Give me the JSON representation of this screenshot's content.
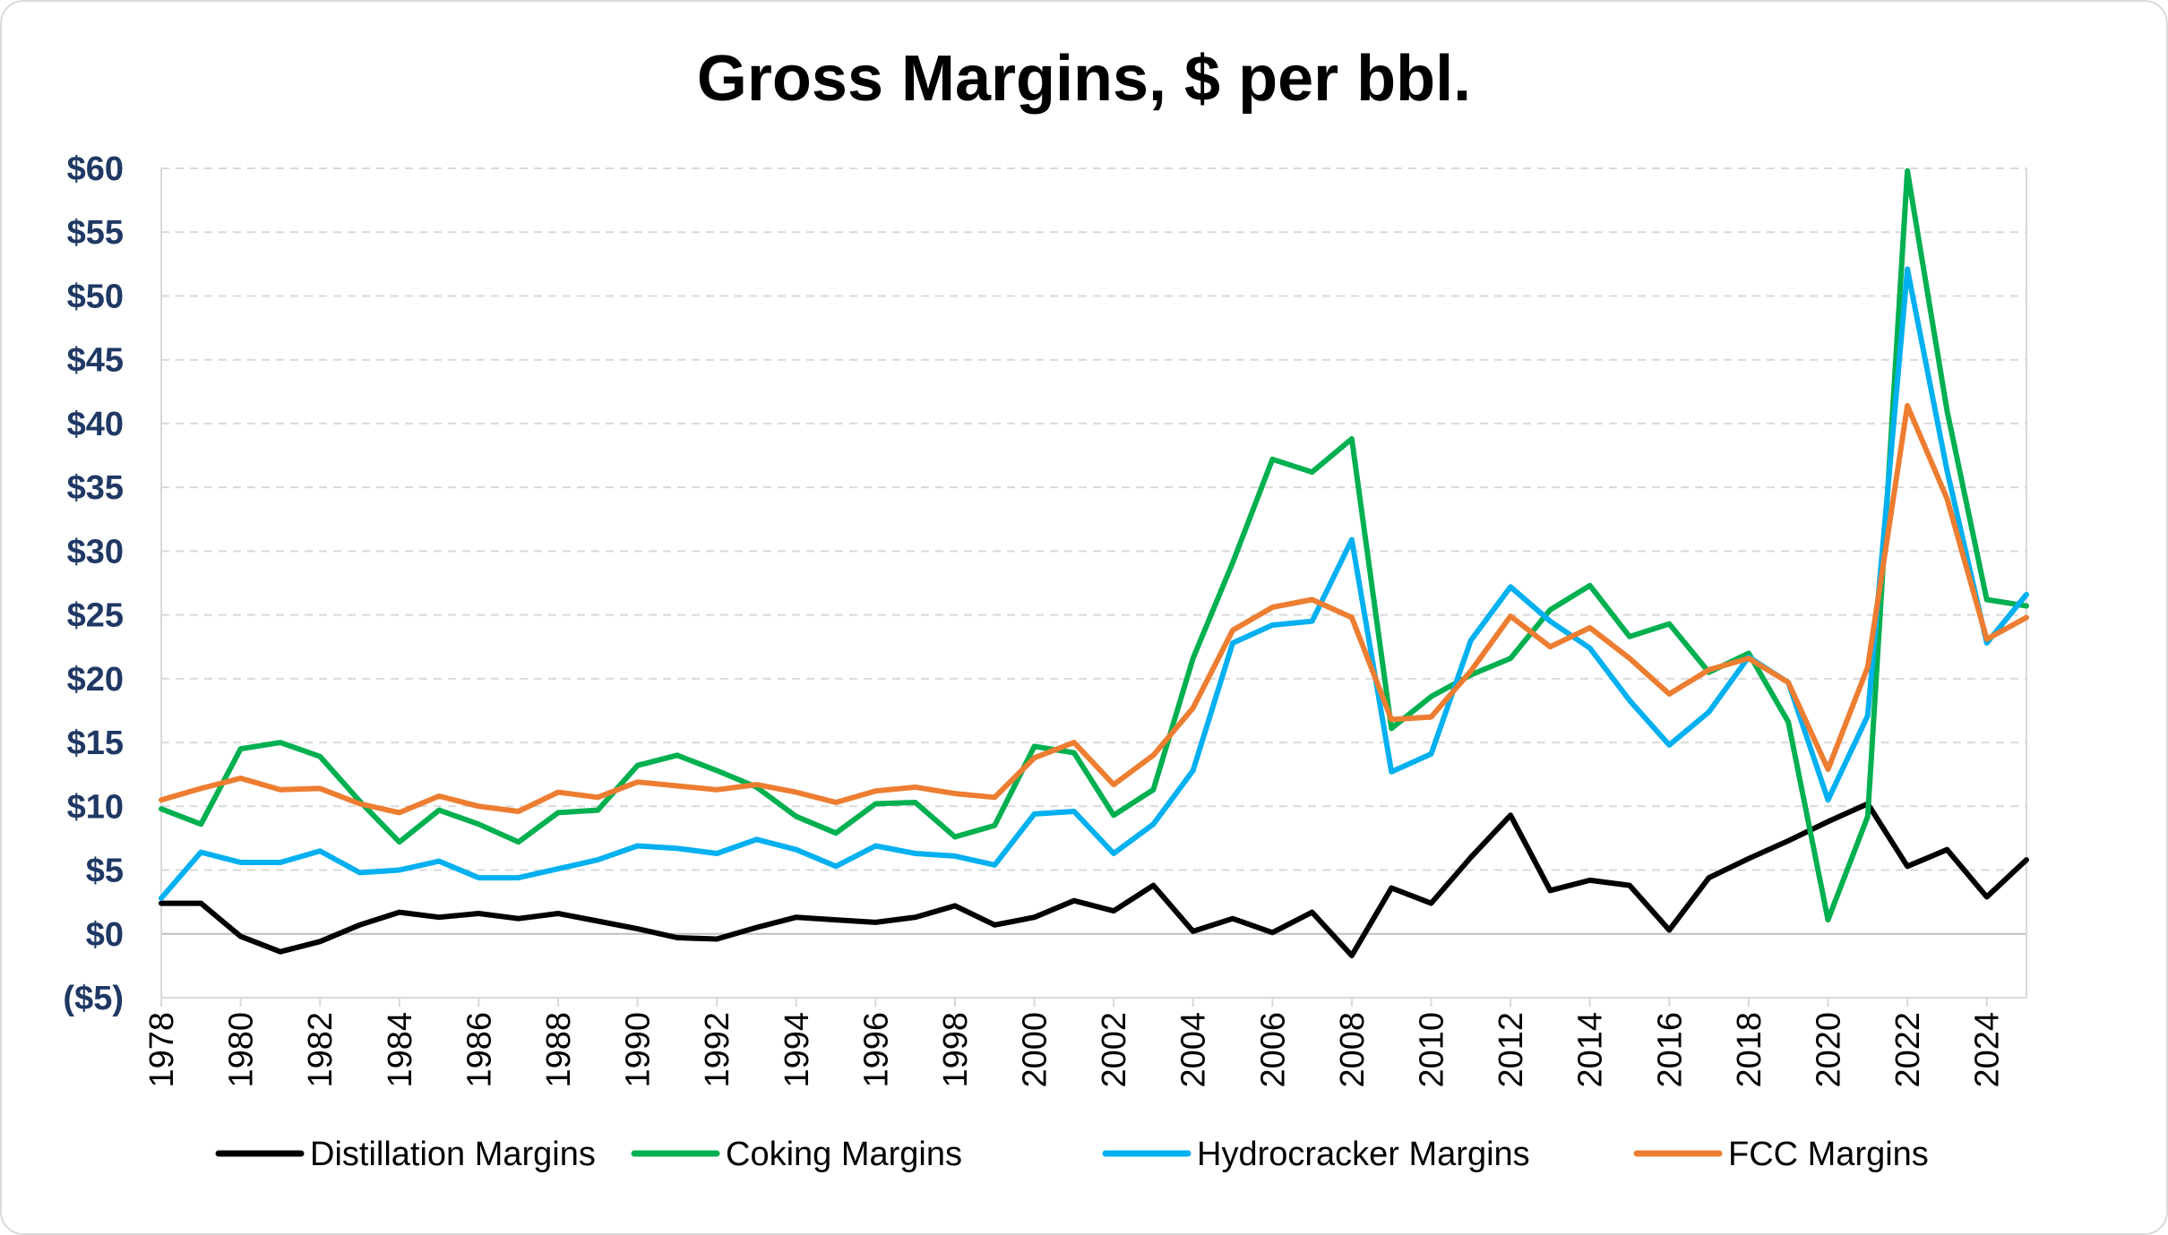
{
  "chart_data": {
    "type": "line",
    "title": "Gross Margins, $ per bbl.",
    "xlabel": "",
    "ylabel": "",
    "ylim": [
      -5,
      60
    ],
    "yticks": [
      60,
      55,
      50,
      45,
      40,
      35,
      30,
      25,
      20,
      15,
      10,
      5,
      0,
      -5
    ],
    "ytick_labels": [
      "$60",
      "$55",
      "$50",
      "$45",
      "$40",
      "$35",
      "$30",
      "$25",
      "$20",
      "$15",
      "$10",
      "$5",
      "$0",
      "($5)"
    ],
    "xtick_labels": [
      "1978",
      "1980",
      "1982",
      "1984",
      "1986",
      "1988",
      "1990",
      "1992",
      "1994",
      "1996",
      "1998",
      "2000",
      "2002",
      "2004",
      "2006",
      "2008",
      "2010",
      "2012",
      "2014",
      "2016",
      "2018",
      "2020",
      "2022",
      "2024"
    ],
    "grid": "horizontal-dashed",
    "legend_position": "bottom",
    "x": [
      1978,
      1979,
      1980,
      1981,
      1982,
      1983,
      1984,
      1985,
      1986,
      1987,
      1988,
      1989,
      1990,
      1991,
      1992,
      1993,
      1994,
      1995,
      1996,
      1997,
      1998,
      1999,
      2000,
      2001,
      2002,
      2003,
      2004,
      2005,
      2006,
      2007,
      2008,
      2009,
      2010,
      2011,
      2012,
      2013,
      2014,
      2015,
      2016,
      2017,
      2018,
      2019,
      2020,
      2021,
      2022,
      2023,
      2024,
      2025
    ],
    "series": [
      {
        "name": "Distillation Margins",
        "color": "#000000",
        "values": [
          2.4,
          2.4,
          -0.2,
          -1.4,
          -0.6,
          0.7,
          1.7,
          1.3,
          1.6,
          1.2,
          1.6,
          1.0,
          0.4,
          -0.3,
          -0.4,
          0.5,
          1.3,
          1.1,
          0.9,
          1.3,
          2.2,
          0.7,
          1.3,
          2.6,
          1.8,
          3.8,
          0.2,
          1.2,
          0.1,
          1.7,
          -1.7,
          3.6,
          2.4,
          6.0,
          9.3,
          3.4,
          4.2,
          3.8,
          0.3,
          4.4,
          5.9,
          7.3,
          8.8,
          10.2,
          5.3,
          6.6,
          2.9,
          5.8
        ]
      },
      {
        "name": "Coking Margins",
        "color": "#00b050",
        "values": [
          9.8,
          8.6,
          14.5,
          15.0,
          13.9,
          10.4,
          7.2,
          9.7,
          8.6,
          7.2,
          9.5,
          9.7,
          13.2,
          14.0,
          12.8,
          11.5,
          9.2,
          7.9,
          10.2,
          10.3,
          7.6,
          8.5,
          14.7,
          14.2,
          9.3,
          11.3,
          21.6,
          29.1,
          37.2,
          36.2,
          38.8,
          16.1,
          18.6,
          20.3,
          21.6,
          25.4,
          27.3,
          23.3,
          24.3,
          20.5,
          22.0,
          16.6,
          1.1,
          9.2,
          59.8,
          41.0,
          26.2,
          25.7
        ]
      },
      {
        "name": "Hydrocracker Margins",
        "color": "#00b0f0",
        "values": [
          2.8,
          6.4,
          5.6,
          5.6,
          6.5,
          4.8,
          5.0,
          5.7,
          4.4,
          4.4,
          5.1,
          5.8,
          6.9,
          6.7,
          6.3,
          7.4,
          6.6,
          5.3,
          6.9,
          6.3,
          6.1,
          5.4,
          9.4,
          9.6,
          6.3,
          8.6,
          12.8,
          22.8,
          24.2,
          24.5,
          30.9,
          12.7,
          14.1,
          23.0,
          27.2,
          24.5,
          22.4,
          18.3,
          14.8,
          17.4,
          21.7,
          19.7,
          10.5,
          17.1,
          52.1,
          36.3,
          22.8,
          26.6
        ]
      },
      {
        "name": "FCC Margins",
        "color": "#ed7d31",
        "values": [
          10.5,
          11.4,
          12.2,
          11.3,
          11.4,
          10.2,
          9.5,
          10.8,
          10.0,
          9.6,
          11.1,
          10.7,
          11.9,
          11.6,
          11.3,
          11.7,
          11.1,
          10.3,
          11.2,
          11.5,
          11.0,
          10.7,
          13.8,
          15.0,
          11.7,
          14.0,
          17.7,
          23.8,
          25.6,
          26.2,
          24.8,
          16.8,
          17.0,
          20.6,
          24.9,
          22.5,
          24.0,
          21.6,
          18.8,
          20.7,
          21.6,
          19.7,
          12.9,
          20.9,
          41.4,
          34.1,
          23.1,
          24.8
        ]
      }
    ]
  }
}
